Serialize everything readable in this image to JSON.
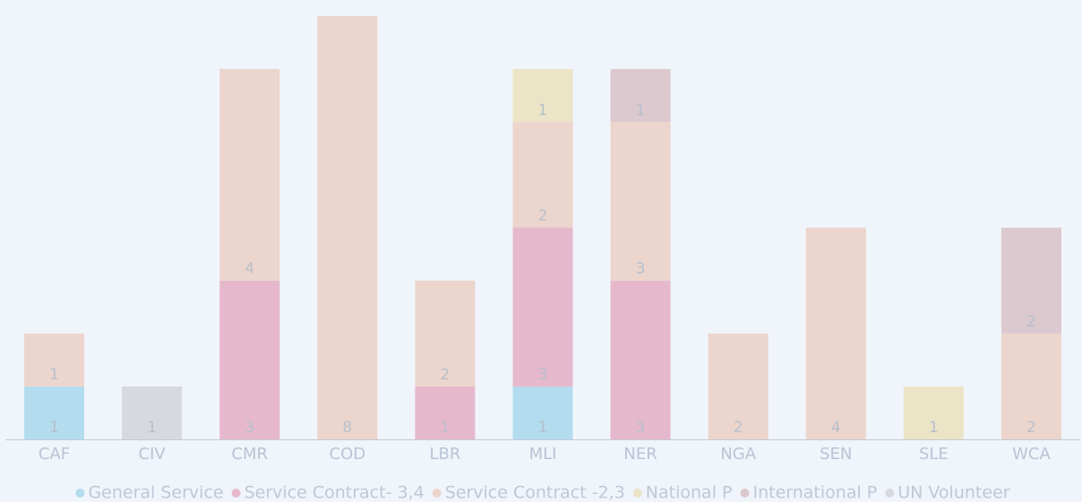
{
  "chart_data": {
    "type": "stacked-bar",
    "categories": [
      "CAF",
      "CIV",
      "CMR",
      "COD",
      "LBR",
      "MLI",
      "NER",
      "NGA",
      "SEN",
      "SLE",
      "WCA"
    ],
    "series": [
      {
        "name": "General Service",
        "color": "#b3dcee",
        "values": [
          1,
          null,
          null,
          null,
          null,
          1,
          null,
          null,
          null,
          null,
          null
        ]
      },
      {
        "name": "Service Contract- 3,4",
        "color": "#e6b8cc",
        "values": [
          null,
          null,
          3,
          null,
          1,
          3,
          3,
          null,
          null,
          null,
          null
        ]
      },
      {
        "name": "Service Contract -2,3",
        "color": "#ecd5cc",
        "values": [
          1,
          null,
          4,
          8,
          2,
          2,
          3,
          2,
          4,
          null,
          2
        ]
      },
      {
        "name": "National P",
        "color": "#ebe4c6",
        "values": [
          null,
          null,
          null,
          null,
          null,
          1,
          null,
          null,
          null,
          1,
          null
        ]
      },
      {
        "name": "International P",
        "color": "#dcc8cf",
        "values": [
          null,
          null,
          null,
          null,
          null,
          null,
          1,
          null,
          null,
          null,
          2
        ]
      },
      {
        "name": "UN Volunteer",
        "color": "#d6d9e0",
        "values": [
          null,
          1,
          null,
          null,
          null,
          null,
          null,
          null,
          null,
          null,
          null
        ]
      }
    ],
    "legend": "bottom"
  }
}
